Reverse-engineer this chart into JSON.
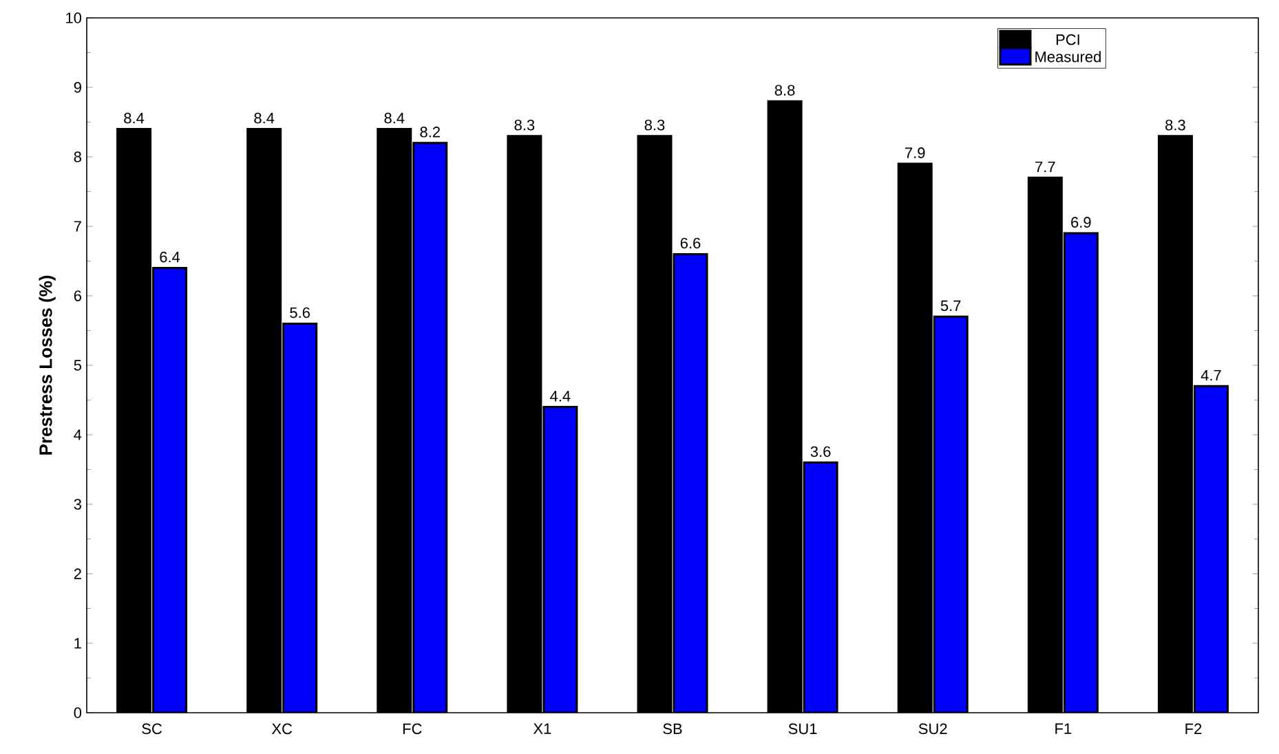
{
  "chart_data": {
    "type": "bar",
    "ylabel": "Prestress Losses (%)",
    "categories": [
      "SC",
      "XC",
      "FC",
      "X1",
      "SB",
      "SU1",
      "SU2",
      "F1",
      "F2"
    ],
    "series": [
      {
        "name": "PCI",
        "color": "#000000",
        "values": [
          8.4,
          8.4,
          8.4,
          8.3,
          8.3,
          8.8,
          7.9,
          7.7,
          8.3
        ]
      },
      {
        "name": "Measured",
        "color": "#0000ff",
        "values": [
          6.4,
          5.6,
          8.2,
          4.4,
          6.6,
          3.6,
          5.7,
          6.9,
          4.7
        ]
      }
    ],
    "ylim": [
      0,
      10
    ],
    "yticks": [
      0,
      1,
      2,
      3,
      4,
      5,
      6,
      7,
      8,
      9,
      10
    ],
    "grid": false,
    "legend": "top right",
    "data_labels": true
  }
}
